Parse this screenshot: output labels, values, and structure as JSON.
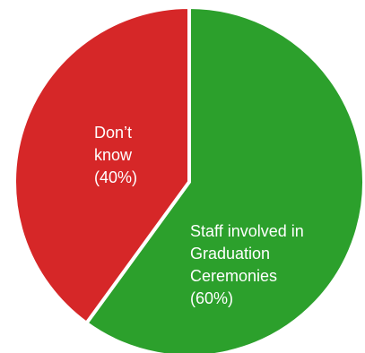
{
  "chart_data": {
    "type": "pie",
    "title": "",
    "slices": [
      {
        "label": "Staff involved in\nGraduation\nCeremonies\n(60%)",
        "value": 60,
        "color": "#2ca02c"
      },
      {
        "label": "Don’t\nknow\n(40%)",
        "value": 40,
        "color": "#d62728"
      }
    ]
  }
}
